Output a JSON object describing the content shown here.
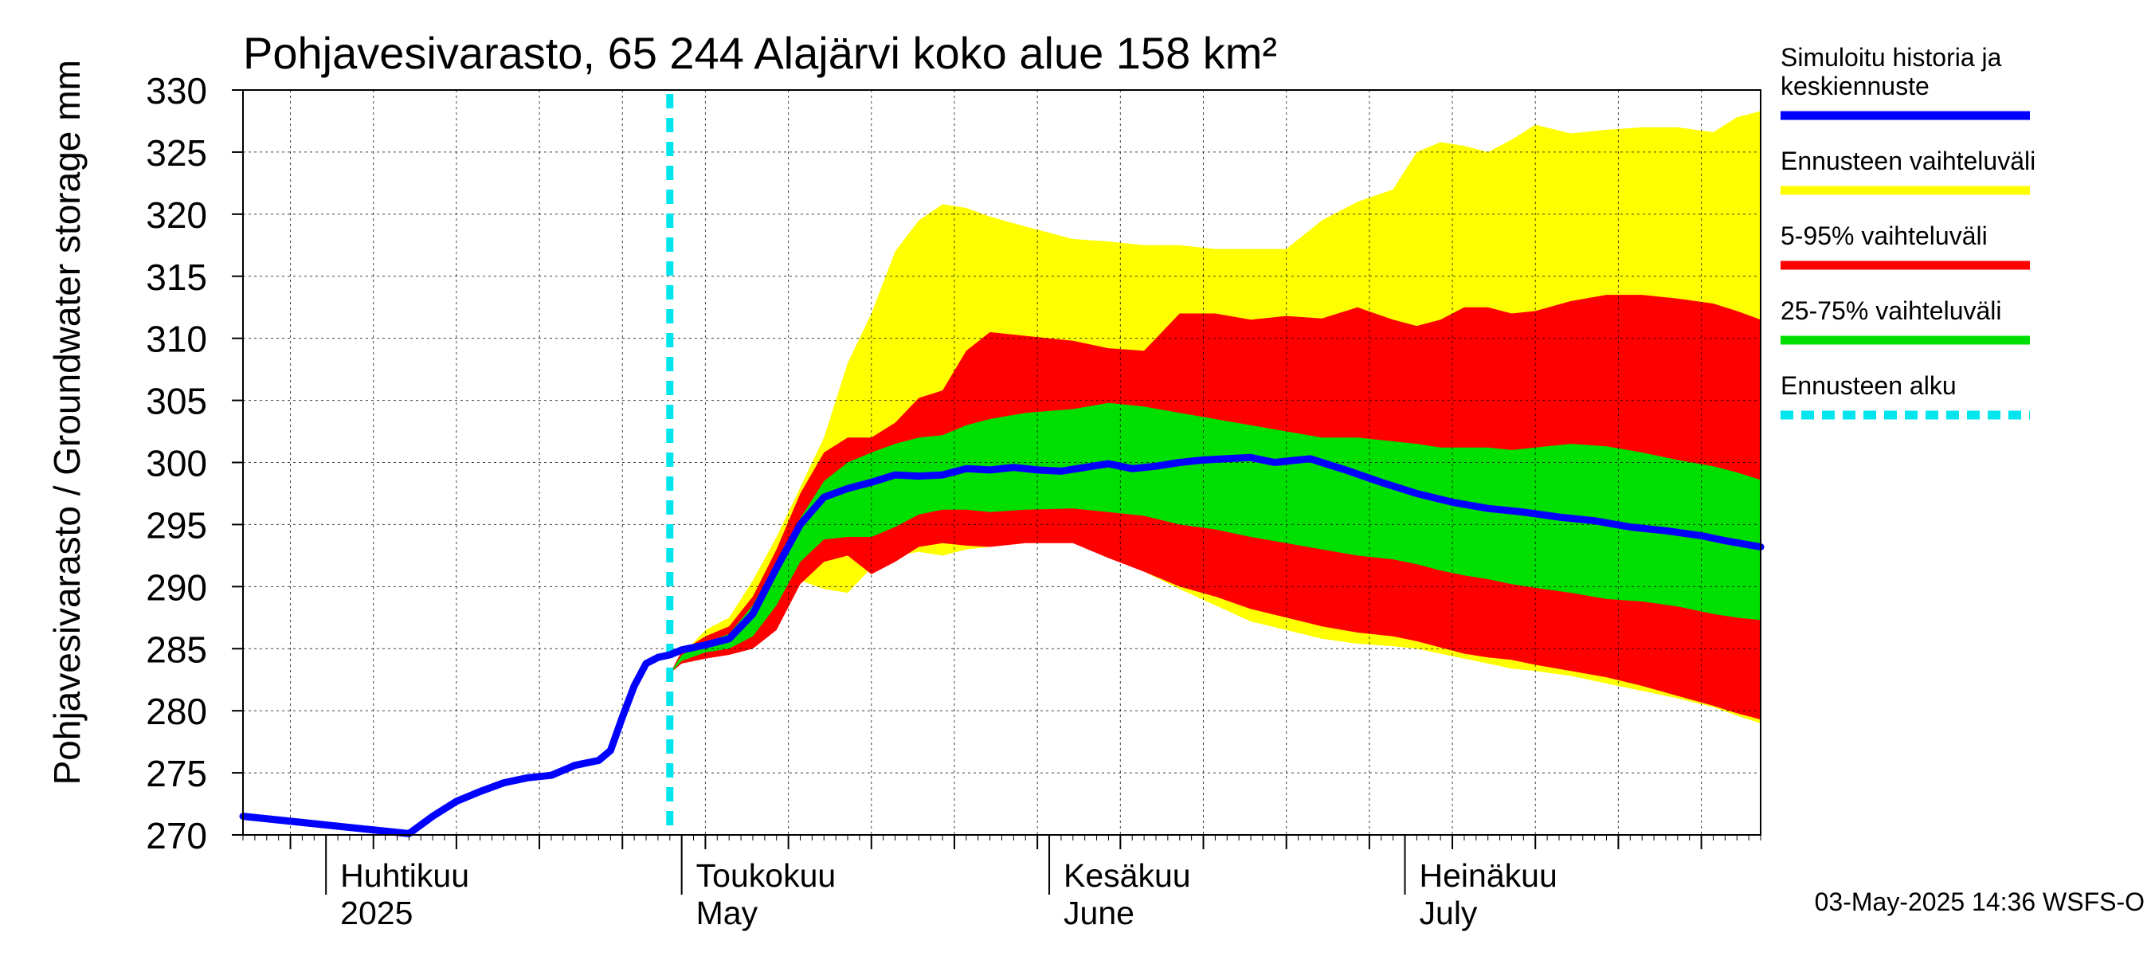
{
  "chart_data": {
    "type": "area",
    "title": "Pohjavesivarasto, 65 244 Alajärvi koko alue 158 km²",
    "ylabel": "Pohjavesivarasto / Groundwater storage",
    "yunit": "mm",
    "ylim": [
      270,
      330
    ],
    "yticks": [
      270,
      275,
      280,
      285,
      290,
      295,
      300,
      305,
      310,
      315,
      320,
      325,
      330
    ],
    "xlim": [
      "2025-03-25",
      "2025-07-31"
    ],
    "grid": true,
    "month_labels": [
      {
        "date": "2025-04-01",
        "fi": "Huhtikuu",
        "en": "2025"
      },
      {
        "date": "2025-05-01",
        "fi": "Toukokuu",
        "en": "May"
      },
      {
        "date": "2025-06-01",
        "fi": "Kesäkuu",
        "en": "June"
      },
      {
        "date": "2025-07-01",
        "fi": "Heinäkuu",
        "en": "July"
      }
    ],
    "forecast_start": "2025-04-30",
    "bands": [
      {
        "name": "Ennusteen vaihteluväli",
        "color": "#ffff00",
        "x": [
          "2025-04-30",
          "2025-05-01",
          "2025-05-03",
          "2025-05-05",
          "2025-05-07",
          "2025-05-09",
          "2025-05-11",
          "2025-05-13",
          "2025-05-15",
          "2025-05-17",
          "2025-05-19",
          "2025-05-21",
          "2025-05-23",
          "2025-05-25",
          "2025-05-27",
          "2025-05-30",
          "2025-06-03",
          "2025-06-06",
          "2025-06-09",
          "2025-06-12",
          "2025-06-15",
          "2025-06-18",
          "2025-06-21",
          "2025-06-24",
          "2025-06-27",
          "2025-06-30",
          "2025-07-02",
          "2025-07-04",
          "2025-07-06",
          "2025-07-08",
          "2025-07-10",
          "2025-07-12",
          "2025-07-15",
          "2025-07-18",
          "2025-07-21",
          "2025-07-24",
          "2025-07-27",
          "2025-07-29",
          "2025-07-31"
        ],
        "upper": [
          283,
          284.5,
          286.5,
          287.5,
          290.5,
          294,
          298,
          302,
          308,
          312,
          317,
          319.5,
          320.8,
          320.5,
          319.8,
          319,
          318,
          317.8,
          317.5,
          317.5,
          317.2,
          317.2,
          317.2,
          319.5,
          321,
          322,
          325,
          325.8,
          325.5,
          325,
          326,
          327.2,
          326.5,
          326.8,
          327,
          327,
          326.6,
          327.8,
          328.3
        ],
        "lower": [
          283,
          284,
          284.5,
          285,
          285.5,
          288,
          290.5,
          289.8,
          289.5,
          291.5,
          292.5,
          292.8,
          292.5,
          293,
          293.2,
          293.8,
          293.5,
          292.7,
          291.2,
          289.8,
          288.5,
          287.2,
          286.5,
          285.8,
          285.4,
          285.2,
          285,
          284.6,
          284.2,
          283.8,
          283.4,
          283.2,
          282.8,
          282.2,
          281.6,
          281,
          280.3,
          279.6,
          279
        ]
      },
      {
        "name": "5-95% vaihteluväli",
        "color": "#ff0000",
        "x": [
          "2025-04-30",
          "2025-05-01",
          "2025-05-03",
          "2025-05-05",
          "2025-05-07",
          "2025-05-09",
          "2025-05-11",
          "2025-05-13",
          "2025-05-15",
          "2025-05-17",
          "2025-05-19",
          "2025-05-21",
          "2025-05-23",
          "2025-05-25",
          "2025-05-27",
          "2025-05-30",
          "2025-06-03",
          "2025-06-06",
          "2025-06-09",
          "2025-06-12",
          "2025-06-15",
          "2025-06-18",
          "2025-06-21",
          "2025-06-24",
          "2025-06-27",
          "2025-06-30",
          "2025-07-02",
          "2025-07-04",
          "2025-07-06",
          "2025-07-08",
          "2025-07-10",
          "2025-07-12",
          "2025-07-15",
          "2025-07-18",
          "2025-07-21",
          "2025-07-24",
          "2025-07-27",
          "2025-07-29",
          "2025-07-31"
        ],
        "upper": [
          283,
          284.8,
          286,
          286.8,
          289.2,
          293,
          297.5,
          300.8,
          302,
          302,
          303.2,
          305.2,
          305.8,
          309,
          310.5,
          310.2,
          309.8,
          309.2,
          309,
          312,
          312,
          311.5,
          311.8,
          311.6,
          312.5,
          311.5,
          311,
          311.5,
          312.5,
          312.5,
          312,
          312.2,
          313,
          313.5,
          313.5,
          313.2,
          312.8,
          312.2,
          311.5
        ],
        "lower": [
          283,
          283.8,
          284.2,
          284.5,
          285,
          286.5,
          290.2,
          292,
          292.5,
          291,
          292,
          293.2,
          293.5,
          293.3,
          293.2,
          293.5,
          293.5,
          292.3,
          291.2,
          290,
          289.2,
          288.2,
          287.5,
          286.8,
          286.3,
          286,
          285.6,
          285.1,
          284.6,
          284.3,
          284.1,
          283.7,
          283.2,
          282.7,
          282,
          281.2,
          280.4,
          279.8,
          279.3
        ]
      },
      {
        "name": "25-75% vaihteluväli",
        "color": "#00e000",
        "x": [
          "2025-04-30",
          "2025-05-01",
          "2025-05-03",
          "2025-05-05",
          "2025-05-07",
          "2025-05-09",
          "2025-05-11",
          "2025-05-13",
          "2025-05-15",
          "2025-05-17",
          "2025-05-19",
          "2025-05-21",
          "2025-05-23",
          "2025-05-25",
          "2025-05-27",
          "2025-05-30",
          "2025-06-03",
          "2025-06-06",
          "2025-06-09",
          "2025-06-12",
          "2025-06-15",
          "2025-06-18",
          "2025-06-21",
          "2025-06-24",
          "2025-06-27",
          "2025-06-30",
          "2025-07-02",
          "2025-07-04",
          "2025-07-06",
          "2025-07-08",
          "2025-07-10",
          "2025-07-12",
          "2025-07-15",
          "2025-07-18",
          "2025-07-21",
          "2025-07-24",
          "2025-07-27",
          "2025-07-29",
          "2025-07-31"
        ],
        "upper": [
          283,
          284.5,
          285.5,
          286.2,
          288.5,
          292,
          295.5,
          298.5,
          300,
          300.8,
          301.5,
          302,
          302.2,
          303,
          303.5,
          304,
          304.3,
          304.8,
          304.5,
          304,
          303.5,
          303,
          302.5,
          302,
          302,
          301.7,
          301.5,
          301.2,
          301.2,
          301.2,
          301,
          301.2,
          301.5,
          301.3,
          300.8,
          300.2,
          299.7,
          299.2,
          298.6
        ],
        "lower": [
          283,
          284,
          284.7,
          285,
          286,
          288.5,
          292,
          293.8,
          294,
          294,
          294.8,
          295.8,
          296.2,
          296.2,
          296,
          296.2,
          296.3,
          296,
          295.7,
          295,
          294.6,
          294,
          293.5,
          293,
          292.5,
          292.2,
          291.8,
          291.3,
          290.9,
          290.6,
          290.2,
          289.9,
          289.5,
          289,
          288.8,
          288.4,
          287.8,
          287.5,
          287.3
        ]
      }
    ],
    "series": [
      {
        "name": "Simuloitu historia ja keskiennuste",
        "color": "#0000ff",
        "x": [
          "2025-03-25",
          "2025-03-30",
          "2025-04-04",
          "2025-04-08",
          "2025-04-10",
          "2025-04-12",
          "2025-04-14",
          "2025-04-16",
          "2025-04-18",
          "2025-04-20",
          "2025-04-22",
          "2025-04-24",
          "2025-04-25",
          "2025-04-26",
          "2025-04-27",
          "2025-04-28",
          "2025-04-29",
          "2025-04-30",
          "2025-05-01",
          "2025-05-03",
          "2025-05-05",
          "2025-05-07",
          "2025-05-09",
          "2025-05-11",
          "2025-05-13",
          "2025-05-15",
          "2025-05-17",
          "2025-05-19",
          "2025-05-21",
          "2025-05-23",
          "2025-05-25",
          "2025-05-27",
          "2025-05-29",
          "2025-05-31",
          "2025-06-02",
          "2025-06-04",
          "2025-06-06",
          "2025-06-08",
          "2025-06-10",
          "2025-06-12",
          "2025-06-14",
          "2025-06-16",
          "2025-06-18",
          "2025-06-20",
          "2025-06-23",
          "2025-06-26",
          "2025-06-29",
          "2025-07-02",
          "2025-07-05",
          "2025-07-08",
          "2025-07-11",
          "2025-07-14",
          "2025-07-17",
          "2025-07-20",
          "2025-07-23",
          "2025-07-26",
          "2025-07-28",
          "2025-07-31"
        ],
        "y": [
          271.5,
          271,
          270.5,
          270.1,
          271.5,
          272.7,
          273.5,
          274.2,
          274.6,
          274.8,
          275.6,
          276,
          276.8,
          279.5,
          282,
          283.8,
          284.3,
          284.5,
          284.9,
          285.3,
          285.8,
          287.8,
          291.5,
          295,
          297.2,
          297.9,
          298.4,
          299,
          298.9,
          299,
          299.5,
          299.4,
          299.6,
          299.4,
          299.3,
          299.6,
          299.9,
          299.5,
          299.7,
          300,
          300.2,
          300.3,
          300.4,
          300,
          300.3,
          299.4,
          298.4,
          297.5,
          296.8,
          296.3,
          296,
          295.6,
          295.3,
          294.8,
          294.5,
          294.1,
          293.7,
          293.2
        ]
      }
    ],
    "legend_position": "right",
    "legend": [
      {
        "label_lines": [
          "Simuloitu historia ja",
          "keskiennuste"
        ],
        "color": "#0000ff",
        "style": "solid"
      },
      {
        "label_lines": [
          "Ennusteen vaihteluväli"
        ],
        "color": "#ffff00",
        "style": "solid"
      },
      {
        "label_lines": [
          "5-95% vaihteluväli"
        ],
        "color": "#ff0000",
        "style": "solid"
      },
      {
        "label_lines": [
          "25-75% vaihteluväli"
        ],
        "color": "#00e000",
        "style": "solid"
      },
      {
        "label_lines": [
          "Ennusteen alku"
        ],
        "color": "#00e5ee",
        "style": "dashed"
      }
    ],
    "timestamp": "03-May-2025 14:36 WSFS-O"
  }
}
